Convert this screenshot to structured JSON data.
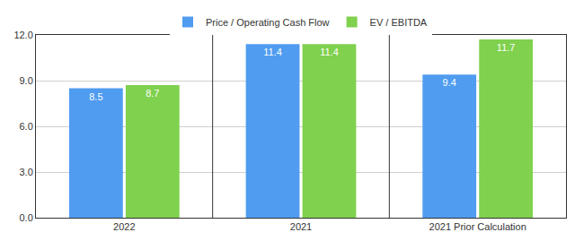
{
  "chart_data": {
    "type": "bar",
    "categories": [
      "2022",
      "2021",
      "2021 Prior Calculation"
    ],
    "series": [
      {
        "name": "Price / Operating Cash Flow",
        "color": "#4f9cf0",
        "values": [
          8.5,
          11.4,
          9.4
        ]
      },
      {
        "name": "EV / EBITDA",
        "color": "#7fd14e",
        "values": [
          8.7,
          11.4,
          11.7
        ]
      }
    ],
    "ylim": [
      0,
      12
    ],
    "yticks": [
      {
        "value": 0,
        "label": "0.0"
      },
      {
        "value": 3,
        "label": "3.0"
      },
      {
        "value": 6,
        "label": "6.0"
      },
      {
        "value": 9,
        "label": "9.0"
      },
      {
        "value": 12,
        "label": "12.0"
      }
    ],
    "grid": true,
    "legend": "top",
    "data_labels": true
  }
}
